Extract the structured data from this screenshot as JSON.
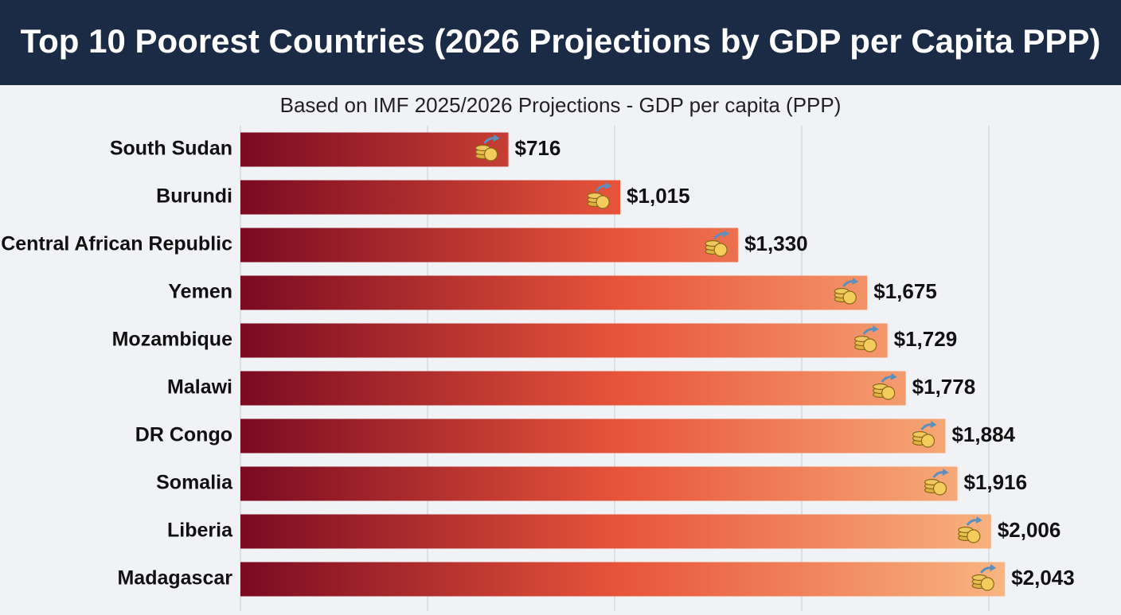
{
  "chart_data": {
    "type": "bar",
    "orientation": "horizontal",
    "title": "Top 10 Poorest Countries (2026 Projections by GDP per Capita PPP)",
    "subtitle": "Based on IMF 2025/2026 Projections - GDP per capita (PPP)",
    "categories": [
      "South Sudan",
      "Burundi",
      "Central African Republic",
      "Yemen",
      "Mozambique",
      "Malawi",
      "DR Congo",
      "Somalia",
      "Liberia",
      "Madagascar"
    ],
    "values": [
      716,
      1015,
      1330,
      1675,
      1729,
      1778,
      1884,
      1916,
      2006,
      2043
    ],
    "value_labels": [
      "$716",
      "$1,015",
      "$1,330",
      "$1,675",
      "$1,729",
      "$1,778",
      "$1,884",
      "$1,916",
      "$2,006",
      "$2,043"
    ],
    "colors": [
      "#7a0a22",
      "#e8553a",
      "#f9b581"
    ],
    "xlim": [
      0,
      2200
    ],
    "xticks": [
      0,
      500,
      1000,
      1500,
      2000
    ],
    "grid": true
  }
}
